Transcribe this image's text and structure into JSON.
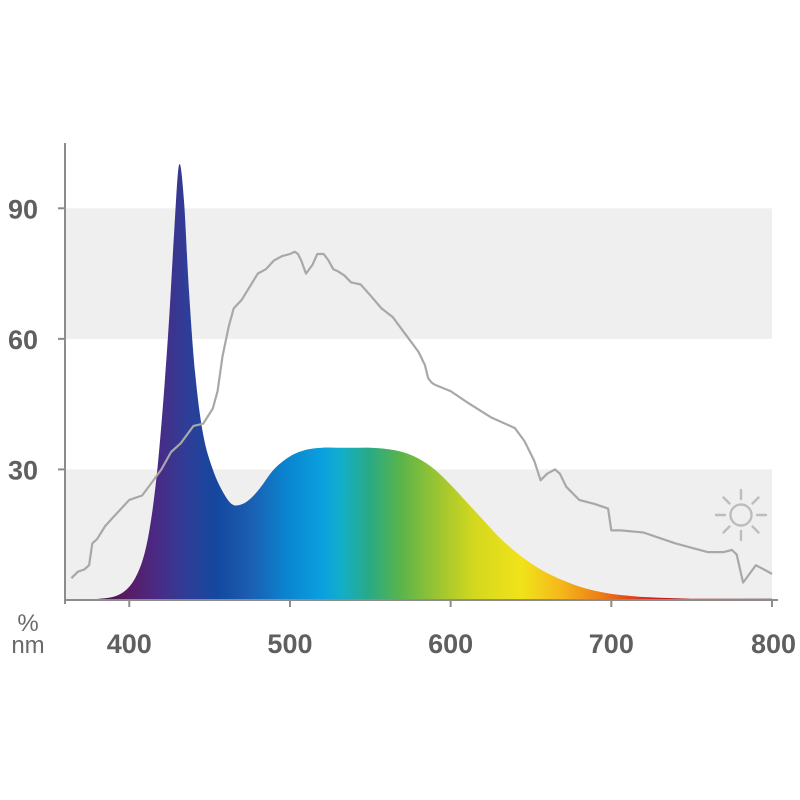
{
  "chart_data": {
    "type": "area",
    "xlabel": "nm",
    "ylabel": "%",
    "xlim": [
      360,
      800
    ],
    "ylim": [
      0,
      105
    ],
    "x_ticks": [
      "400",
      "500",
      "600",
      "700",
      "800"
    ],
    "y_ticks": [
      "30",
      "60",
      "90"
    ],
    "grid": "alternating horizontal bands (0-30, 60-90 shaded)",
    "icon": "sun-icon",
    "series": [
      {
        "style": "spectrum-filled-area",
        "x": [
          360,
          380,
          395,
          405,
          412,
          418,
          424,
          428,
          431,
          434,
          437,
          441,
          446,
          452,
          458,
          464,
          470,
          476,
          482,
          490,
          500,
          510,
          520,
          530,
          540,
          550,
          560,
          570,
          580,
          590,
          600,
          610,
          620,
          630,
          640,
          650,
          660,
          670,
          680,
          690,
          700,
          710,
          720,
          730,
          740,
          750,
          760,
          770,
          780,
          790,
          800
        ],
        "y": [
          0,
          0.2,
          1.5,
          6,
          15,
          32,
          60,
          85,
          100,
          92,
          72,
          52,
          38,
          30,
          25,
          22,
          22,
          23.5,
          26,
          30,
          33,
          34.5,
          35,
          35,
          35,
          35,
          34.7,
          34,
          32.5,
          30,
          26.5,
          22.5,
          18.5,
          14.5,
          11.2,
          8.4,
          6.2,
          4.5,
          3.1,
          2.1,
          1.4,
          1,
          0.7,
          0.5,
          0.4,
          0.3,
          0.3,
          0.3,
          0.3,
          0.3,
          0.3
        ]
      },
      {
        "style": "gray-line",
        "x": [
          364,
          368,
          372,
          375,
          377,
          380,
          385,
          390,
          400,
          408,
          414,
          420,
          426,
          432,
          440,
          446,
          452,
          455,
          458,
          462,
          465,
          470,
          480,
          485,
          490,
          495,
          500,
          503,
          505,
          507,
          510,
          514,
          517,
          521,
          524,
          527,
          530,
          534,
          538,
          544,
          550,
          557,
          564,
          570,
          576,
          580,
          584,
          586,
          588,
          590,
          600,
          612,
          625,
          640,
          646,
          652,
          656,
          660,
          665,
          668,
          672,
          680,
          690,
          698,
          700,
          706,
          720,
          732,
          740,
          750,
          760,
          766,
          770,
          775,
          778,
          782,
          786,
          790,
          795,
          800
        ],
        "y": [
          5,
          6.5,
          7,
          8,
          13,
          14,
          17,
          19,
          23,
          24,
          27,
          30,
          34,
          36,
          40,
          40.5,
          44,
          48,
          56,
          63,
          67,
          69,
          75,
          76,
          78,
          79,
          79.5,
          80,
          79.5,
          78,
          75,
          77,
          79.5,
          79.5,
          78,
          76,
          75.5,
          74.5,
          73,
          72.5,
          70,
          67,
          65,
          62,
          59,
          57,
          54,
          51,
          50,
          49.5,
          48,
          45,
          42,
          39.5,
          36.5,
          32,
          27.5,
          29,
          30,
          29,
          26,
          23,
          22,
          21,
          16,
          16,
          15.5,
          14,
          13,
          12,
          11,
          11,
          11,
          11.5,
          10.5,
          4,
          6,
          8,
          7,
          6
        ]
      }
    ]
  }
}
